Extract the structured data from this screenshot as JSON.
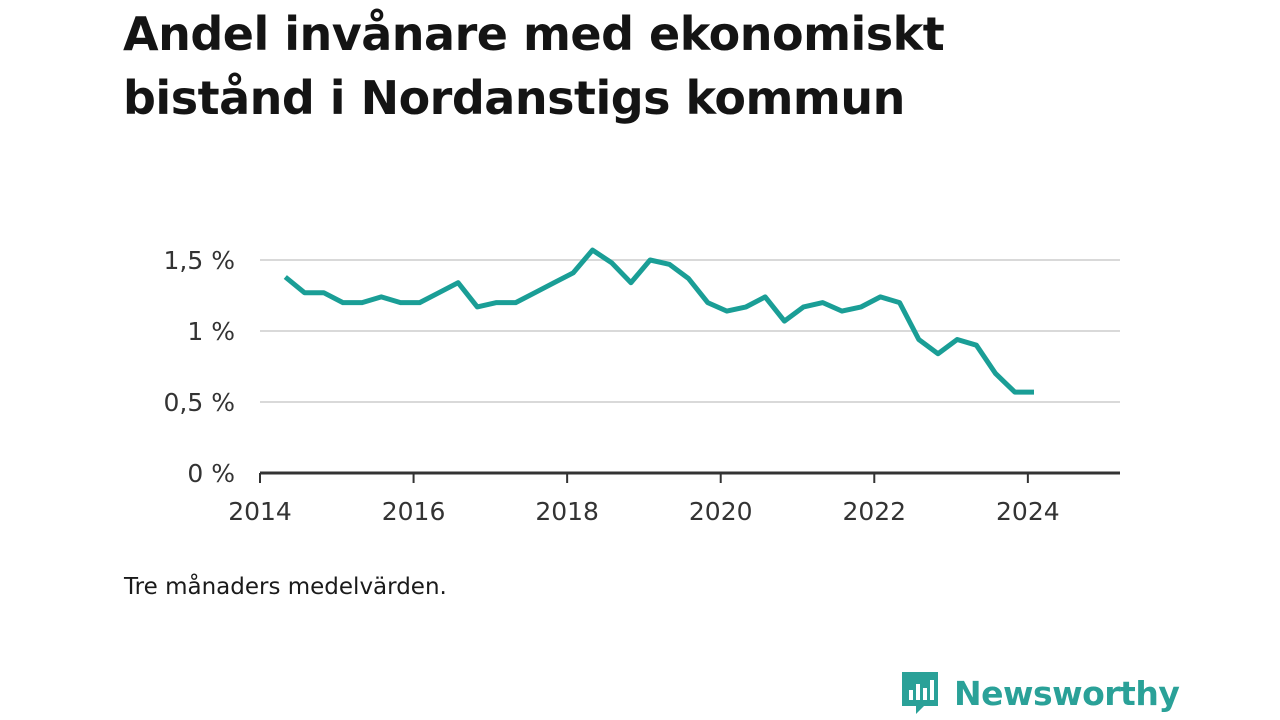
{
  "title": "Andel invånare med ekonomiskt bistånd i Nordanstigs kommun",
  "note": "Tre månaders medelvärden.",
  "brand": {
    "name": "Newsworthy",
    "icon": "newsworthy-logo-icon",
    "color": "#2aa198"
  },
  "colors": {
    "line": "#1a9e96",
    "grid": "#d9d9d9",
    "axis": "#333333",
    "text": "#333333"
  },
  "chart_data": {
    "type": "line",
    "title": "Andel invånare med ekonomiskt bistånd i Nordanstigs kommun",
    "xlabel": "",
    "ylabel": "",
    "xlim": [
      2014.0,
      2025.2
    ],
    "ylim": [
      0,
      1.5
    ],
    "x_ticks": [
      2014,
      2016,
      2018,
      2020,
      2022,
      2024
    ],
    "y_ticks": [
      {
        "value": 0,
        "label": "0 %"
      },
      {
        "value": 0.5,
        "label": "0,5 %"
      },
      {
        "value": 1,
        "label": "1 %"
      },
      {
        "value": 1.5,
        "label": "1,5 %"
      }
    ],
    "grid": true,
    "series": [
      {
        "x": [
          2014.33,
          2014.58,
          2014.83,
          2015.08,
          2015.33,
          2015.58,
          2015.83,
          2016.08,
          2016.33,
          2016.58,
          2016.83,
          2017.08,
          2017.33,
          2017.58,
          2017.83,
          2018.08,
          2018.33,
          2018.58,
          2018.83,
          2019.08,
          2019.33,
          2019.58,
          2019.83,
          2020.08,
          2020.33,
          2020.58,
          2020.83,
          2021.08,
          2021.33,
          2021.58,
          2021.83,
          2022.08,
          2022.33,
          2022.58,
          2022.83,
          2023.08,
          2023.33,
          2023.58,
          2023.83,
          2024.08
        ],
        "values": [
          1.38,
          1.27,
          1.27,
          1.2,
          1.2,
          1.24,
          1.2,
          1.2,
          1.27,
          1.34,
          1.17,
          1.2,
          1.2,
          1.27,
          1.34,
          1.41,
          1.57,
          1.48,
          1.34,
          1.5,
          1.47,
          1.37,
          1.2,
          1.14,
          1.17,
          1.24,
          1.07,
          1.17,
          1.2,
          1.14,
          1.17,
          1.24,
          1.2,
          0.94,
          0.84,
          0.94,
          0.9,
          0.7,
          0.57,
          0.57
        ]
      }
    ]
  }
}
